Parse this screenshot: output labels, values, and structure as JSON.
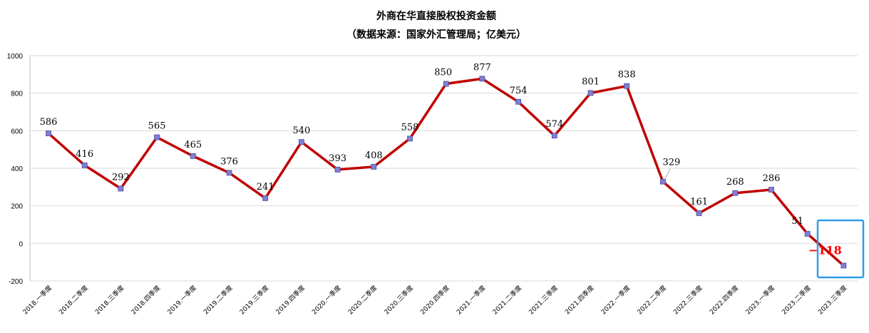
{
  "chart_data": {
    "type": "line",
    "title": "外商在华直接股权投资金额",
    "subtitle": "（数据来源：国家外汇管理局；亿美元）",
    "categories": [
      "2018.一季度",
      "2018.二季度",
      "2018.三季度",
      "2018.四季度",
      "2019.一季度",
      "2019.二季度",
      "2019.三季度",
      "2019.四季度",
      "2020.一季度",
      "2020.二季度",
      "2020.三季度",
      "2020.四季度",
      "2021.一季度",
      "2021.二季度",
      "2021.三季度",
      "2021.四季度",
      "2022.一季度",
      "2022.二季度",
      "2022.三季度",
      "2022.四季度",
      "2023.一季度",
      "2023.二季度",
      "2023.三季度"
    ],
    "values": [
      586,
      416,
      292,
      565,
      465,
      376,
      241,
      540,
      393,
      408,
      558,
      850,
      877,
      754,
      574,
      801,
      838,
      329,
      161,
      268,
      286,
      51,
      -118
    ],
    "data_labels": [
      "586",
      "416",
      "292",
      "565",
      "465",
      "376",
      "241",
      "540",
      "393",
      "408",
      "558",
      "850",
      "877",
      "754",
      "574",
      "801",
      "838",
      "329",
      "161",
      "268",
      "286",
      "51",
      "−118"
    ],
    "ylim": [
      -200,
      1000
    ],
    "yticks": [
      -200,
      0,
      200,
      400,
      600,
      800,
      1000
    ],
    "ytick_labels": [
      "-200",
      "0",
      "200",
      "400",
      "600",
      "800",
      "1000"
    ],
    "grid": true,
    "colors": {
      "line": "#c00000",
      "marker": "#7f7fd5",
      "highlight_box": "#2e9be8",
      "negative_label": "#ff0000",
      "grid": "#d9d9d9"
    }
  }
}
